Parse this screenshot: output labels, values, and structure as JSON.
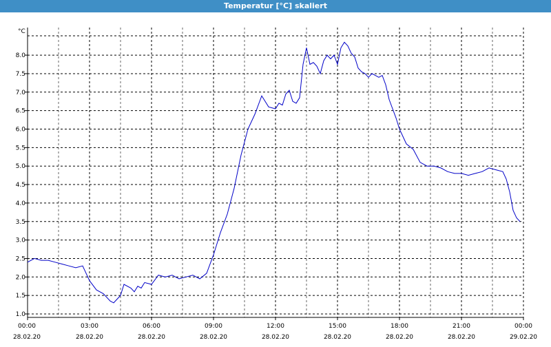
{
  "window": {
    "title": "Temperatur [°C] skaliert"
  },
  "colors": {
    "title_bar": "#3f8fc6",
    "line": "#0000c8",
    "grid": "#000000"
  },
  "chart_data": {
    "type": "line",
    "title": "Temperatur [°C] skaliert",
    "ylabel": "°C",
    "xlabel": "",
    "ylim": [
      0.9,
      8.7
    ],
    "xlim": [
      "2020-02-28 00:00",
      "2020-02-29 00:00"
    ],
    "grid": true,
    "y_ticks": [
      "1.0",
      "1.5",
      "2.0",
      "2.5",
      "3.0",
      "3.5",
      "4.0",
      "4.5",
      "5.0",
      "5.5",
      "6.0",
      "6.5",
      "7.0",
      "7.5",
      "8.0"
    ],
    "x_ticks": [
      {
        "time": "00:00",
        "date": "28.02.20"
      },
      {
        "time": "03:00",
        "date": "28.02.20"
      },
      {
        "time": "06:00",
        "date": "28.02.20"
      },
      {
        "time": "09:00",
        "date": "28.02.20"
      },
      {
        "time": "12:00",
        "date": "28.02.20"
      },
      {
        "time": "15:00",
        "date": "28.02.20"
      },
      {
        "time": "18:00",
        "date": "28.02.20"
      },
      {
        "time": "21:00",
        "date": "28.02.20"
      },
      {
        "time": "00:00",
        "date": "29.02.20"
      }
    ],
    "series": [
      {
        "x": [
          "00:00",
          "00:20",
          "00:40",
          "01:00",
          "01:20",
          "01:40",
          "02:00",
          "02:20",
          "02:40",
          "03:00",
          "03:20",
          "03:40",
          "04:00",
          "04:10",
          "04:20",
          "04:30",
          "04:40",
          "05:00",
          "05:10",
          "05:20",
          "05:30",
          "05:40",
          "06:00",
          "06:20",
          "06:40",
          "07:00",
          "07:20",
          "07:40",
          "08:00",
          "08:20",
          "08:40",
          "09:00",
          "09:20",
          "09:40",
          "10:00",
          "10:20",
          "10:40",
          "11:00",
          "11:20",
          "11:40",
          "12:00",
          "12:10",
          "12:20",
          "12:30",
          "12:40",
          "12:50",
          "13:00",
          "13:10",
          "13:20",
          "13:30",
          "13:40",
          "13:50",
          "14:00",
          "14:10",
          "14:20",
          "14:30",
          "14:40",
          "14:50",
          "15:00",
          "15:10",
          "15:20",
          "15:30",
          "15:40",
          "15:50",
          "16:00",
          "16:10",
          "16:20",
          "16:30",
          "16:40",
          "16:50",
          "17:00",
          "17:10",
          "17:20",
          "17:30",
          "17:40",
          "17:50",
          "18:00",
          "18:20",
          "18:40",
          "19:00",
          "19:20",
          "19:40",
          "20:00",
          "20:20",
          "20:40",
          "21:00",
          "21:20",
          "21:40",
          "22:00",
          "22:20",
          "22:40",
          "23:00",
          "23:10",
          "23:20",
          "23:30",
          "23:40",
          "23:50"
        ],
        "values": [
          2.4,
          2.5,
          2.45,
          2.45,
          2.4,
          2.35,
          2.3,
          2.25,
          2.3,
          1.9,
          1.65,
          1.55,
          1.35,
          1.3,
          1.4,
          1.5,
          1.8,
          1.7,
          1.6,
          1.75,
          1.7,
          1.85,
          1.8,
          2.05,
          2.0,
          2.05,
          1.95,
          2.0,
          2.05,
          1.95,
          2.1,
          2.6,
          3.2,
          3.7,
          4.4,
          5.3,
          6.0,
          6.4,
          6.9,
          6.6,
          6.55,
          6.7,
          6.65,
          6.95,
          7.05,
          6.75,
          6.7,
          6.85,
          7.75,
          8.2,
          7.75,
          7.8,
          7.7,
          7.5,
          7.85,
          8.0,
          7.9,
          8.0,
          7.75,
          8.2,
          8.35,
          8.25,
          8.05,
          7.95,
          7.65,
          7.55,
          7.5,
          7.4,
          7.5,
          7.45,
          7.4,
          7.45,
          7.2,
          6.8,
          6.55,
          6.3,
          6.0,
          5.6,
          5.45,
          5.1,
          5.0,
          5.0,
          4.95,
          4.85,
          4.8,
          4.8,
          4.75,
          4.8,
          4.85,
          4.95,
          4.9,
          4.85,
          4.65,
          4.3,
          3.8,
          3.6,
          3.5
        ]
      }
    ]
  }
}
